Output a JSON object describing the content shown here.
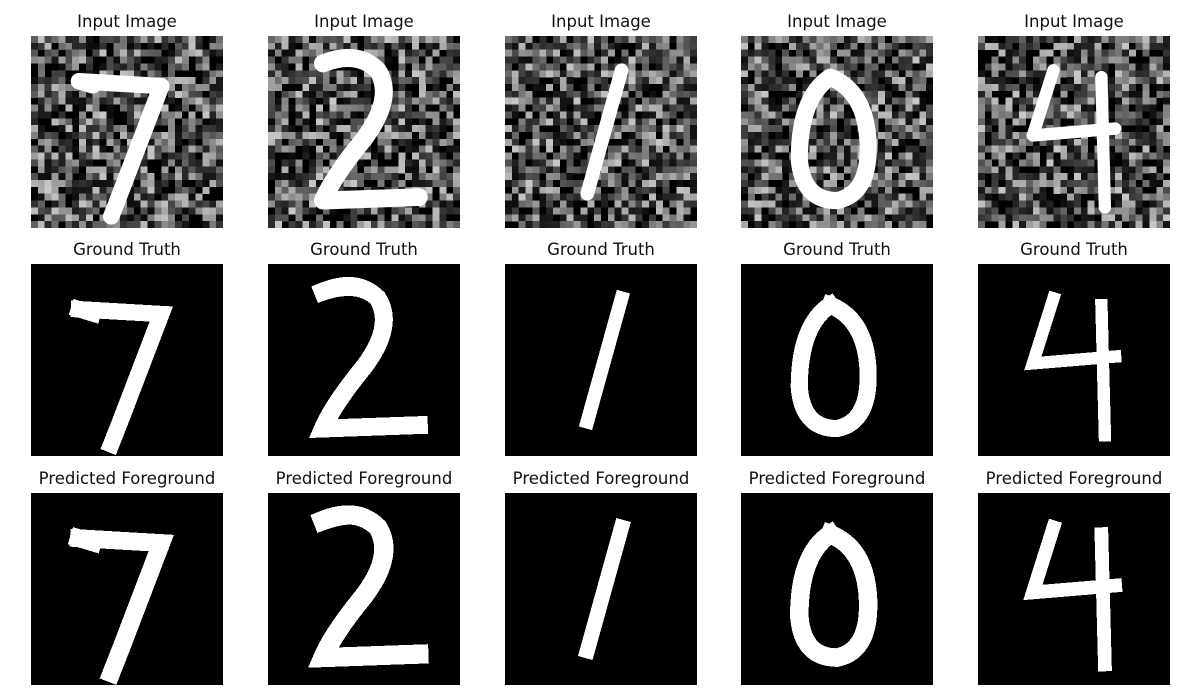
{
  "figure": {
    "rows": [
      {
        "title": "Input Image"
      },
      {
        "title": "Ground Truth"
      },
      {
        "title": "Predicted Foreground"
      }
    ],
    "samples": [
      {
        "digit": "7"
      },
      {
        "digit": "2"
      },
      {
        "digit": "1"
      },
      {
        "digit": "0"
      },
      {
        "digit": "4"
      }
    ],
    "colors": {
      "background": "#000000",
      "foreground": "#ffffff",
      "noise": "#808080"
    }
  }
}
